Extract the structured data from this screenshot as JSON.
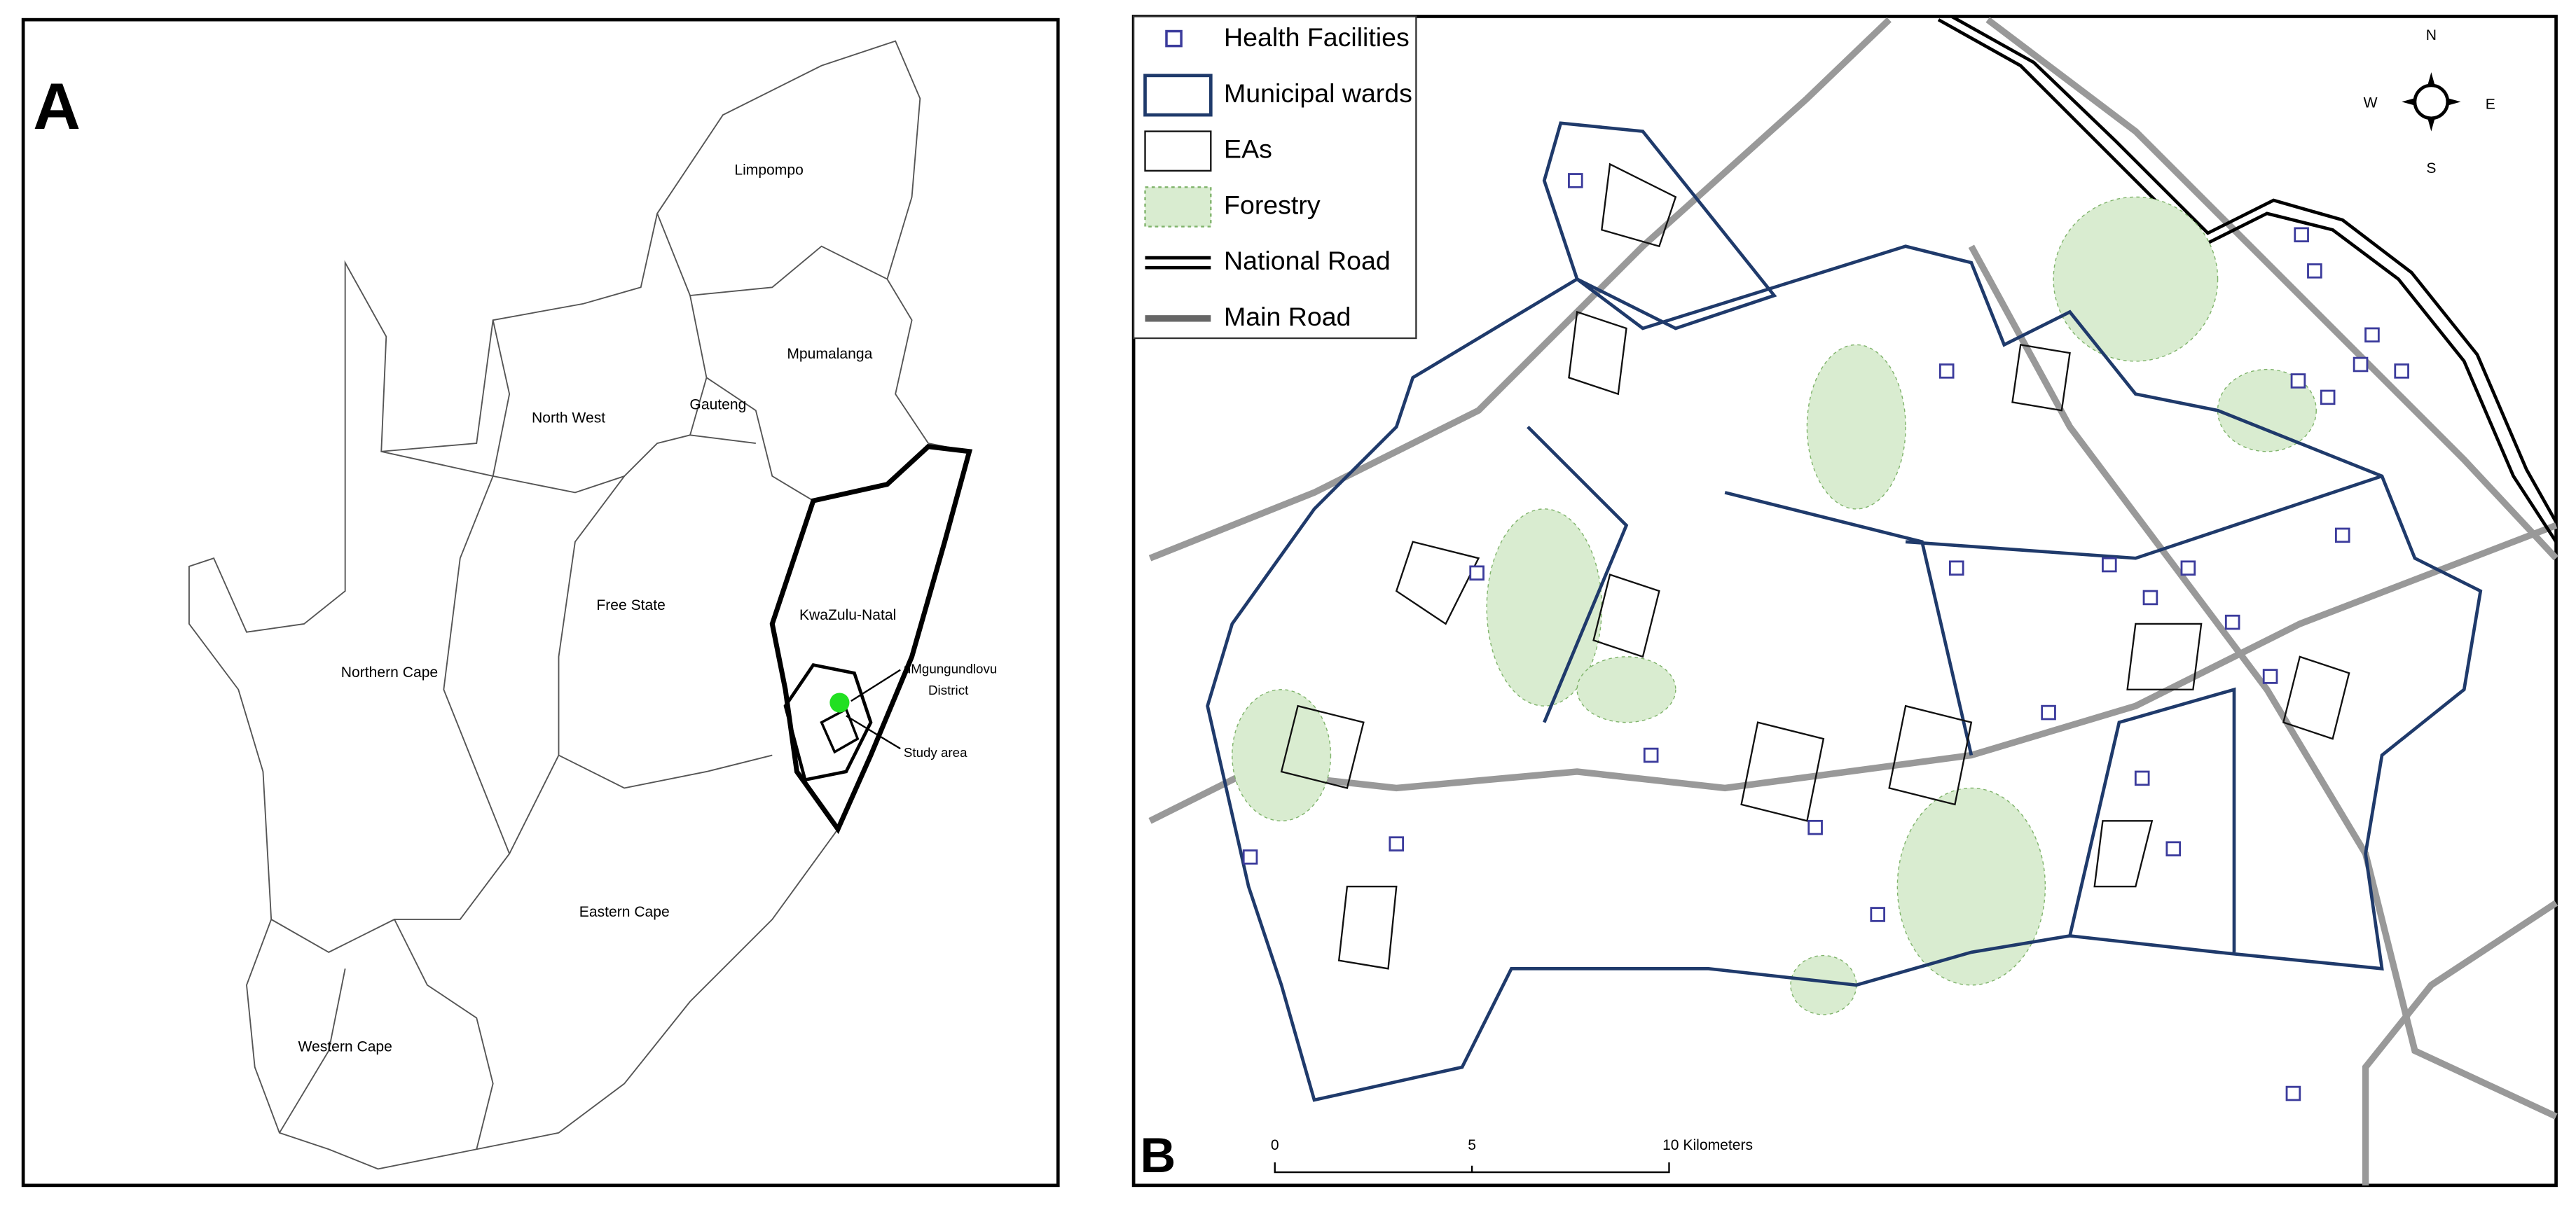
{
  "panel_a": {
    "label": "A",
    "provinces": [
      "Limpompo",
      "North West",
      "Gauteng",
      "Mpumalanga",
      "Free State",
      "KwaZulu-Natal",
      "Northern Cape",
      "Eastern Cape",
      "Western Cape"
    ],
    "annotations": {
      "district": [
        "uMgungundlovu",
        "District"
      ],
      "study_area": "Study area"
    }
  },
  "panel_b": {
    "label": "B",
    "legend": [
      "Health Facilities",
      "Municipal wards",
      "EAs",
      "Forestry",
      "National Road",
      "Main Road"
    ],
    "compass": {
      "n": "N",
      "s": "S",
      "e": "E",
      "w": "W"
    },
    "scale_bar": [
      "0",
      "5",
      "10 Kilometers"
    ]
  }
}
